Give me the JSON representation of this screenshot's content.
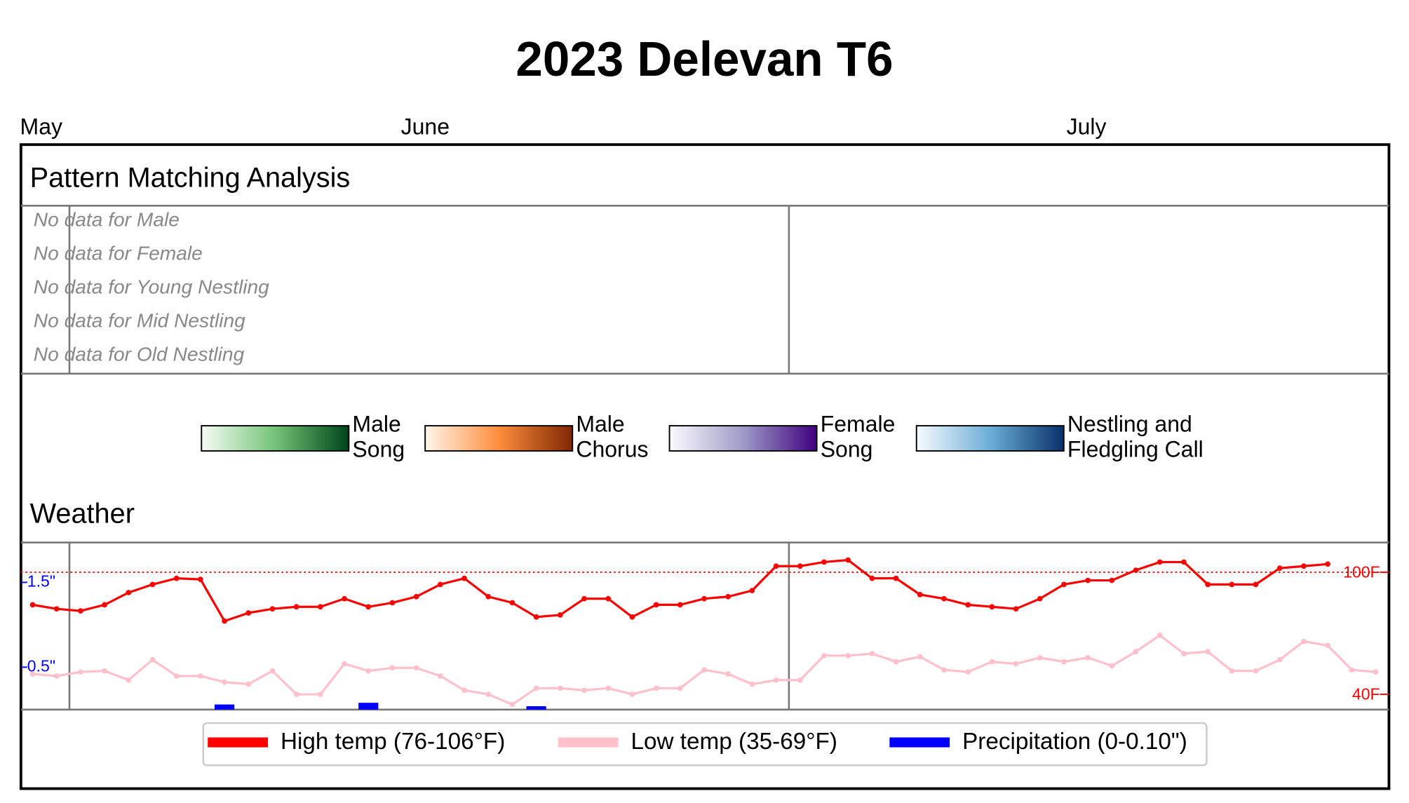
{
  "chart_data": {
    "type": "line",
    "title": "2023 Delevan T6",
    "months": [
      "May",
      "June",
      "July"
    ],
    "pattern_title": "Pattern Matching Analysis",
    "messages": [
      "No data for Male",
      "No data for Female",
      "No data for Young Nestling",
      "No data for Mid Nestling",
      "No data for Old Nestling"
    ],
    "colorbars": [
      {
        "label": [
          "Male",
          "Song"
        ]
      },
      {
        "label": [
          "Male",
          "Chorus"
        ]
      },
      {
        "label": [
          "Female",
          "Song"
        ]
      },
      {
        "label": [
          "Nestling and",
          "Fledgling Call"
        ]
      }
    ],
    "weather_title": "Weather",
    "ylim": [
      32.5,
      114.6
    ],
    "yticks": [
      {
        "value": 100,
        "label": "100F"
      },
      {
        "value": 40,
        "label": "40F"
      }
    ],
    "reference_line": 100,
    "y2lim": [
      0,
      1.97
    ],
    "y2ticks": [
      {
        "value": 1.5,
        "label": "1.5\""
      },
      {
        "value": 0.5,
        "label": "0.5\""
      }
    ],
    "series": [
      {
        "name": "High temp (76-106°F)",
        "color": "#ff0000",
        "values": [
          84,
          82,
          81,
          84,
          90,
          94,
          97,
          96.5,
          76,
          80,
          82,
          83,
          83,
          87,
          83,
          85,
          88,
          94,
          97,
          88,
          85,
          78,
          79,
          87,
          87,
          78,
          84,
          84,
          87,
          88,
          91,
          103,
          103,
          105,
          106,
          97,
          97,
          89,
          87,
          84,
          83,
          82,
          87,
          94,
          96,
          96,
          101,
          105,
          105,
          94,
          94,
          94,
          102,
          103,
          104,
          null,
          null
        ]
      },
      {
        "name": "Low temp (35-69°F)",
        "color": "#ffc0cb",
        "values": [
          50,
          49,
          51,
          51.5,
          47,
          57,
          49,
          49,
          46,
          45,
          51.5,
          40,
          40,
          55,
          51.5,
          53,
          53,
          49,
          42,
          40,
          35,
          43,
          43,
          42,
          43,
          40,
          43,
          43,
          52,
          50,
          45,
          47,
          47,
          59,
          59,
          60,
          56,
          58.5,
          52,
          51,
          56,
          55,
          58,
          56,
          58,
          54,
          61,
          69,
          60,
          61,
          51.5,
          51.5,
          57,
          66,
          64,
          52,
          51
        ]
      },
      {
        "name": "Precipitation (0-0.10\")",
        "color": "#0000ff",
        "axis": "y2",
        "type": "bar",
        "values": [
          0,
          0,
          0,
          0,
          0,
          0,
          0,
          0,
          0.06,
          0,
          0,
          0,
          0,
          0,
          0.08,
          0,
          0,
          0,
          0,
          0,
          0,
          0.04,
          0,
          0,
          0,
          0,
          0,
          0,
          0,
          0,
          0,
          0,
          0,
          0,
          0,
          0,
          0,
          0,
          0,
          0,
          0,
          0,
          0,
          0,
          0,
          0,
          0,
          0,
          0,
          0,
          0,
          0,
          0,
          0,
          0,
          0,
          0
        ]
      }
    ]
  }
}
